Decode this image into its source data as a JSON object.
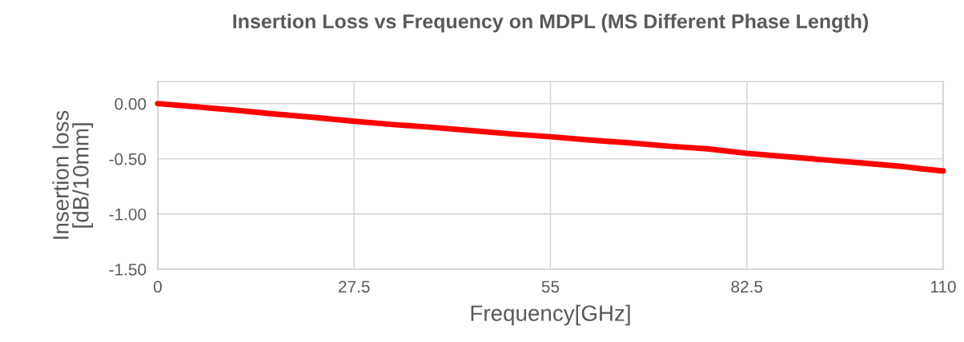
{
  "chart_data": {
    "type": "line",
    "title": "Insertion Loss vs Frequency on MDPL (MS Different Phase Length)",
    "xlabel": "Frequency[GHz]",
    "ylabel": "Insertion loss\n[dB/10mm]",
    "series": [
      {
        "color": "#ff0000",
        "x": [
          0,
          5.5,
          11,
          16.5,
          22,
          27.5,
          33,
          38.5,
          44,
          49.5,
          55,
          60.5,
          66,
          71.5,
          77,
          82.5,
          88,
          93.5,
          99,
          104.5,
          107,
          110
        ],
        "values": [
          0,
          -0.03,
          -0.06,
          -0.095,
          -0.125,
          -0.16,
          -0.19,
          -0.215,
          -0.245,
          -0.275,
          -0.3,
          -0.33,
          -0.355,
          -0.385,
          -0.41,
          -0.45,
          -0.48,
          -0.51,
          -0.54,
          -0.57,
          -0.59,
          -0.61
        ]
      }
    ],
    "xlim": [
      0,
      110
    ],
    "xticks": [
      0,
      27.5,
      55,
      82.5,
      110
    ],
    "ylim": [
      -1.5,
      0.2
    ],
    "yticks": [
      {
        "value": 0,
        "label": "0.00"
      },
      {
        "value": -0.5,
        "label": "-0.50"
      },
      {
        "value": -1,
        "label": "-1.00"
      },
      {
        "value": -1.5,
        "label": "-1.50"
      }
    ],
    "grid": true,
    "marker": "none",
    "line_style": "solid",
    "legend": false
  }
}
